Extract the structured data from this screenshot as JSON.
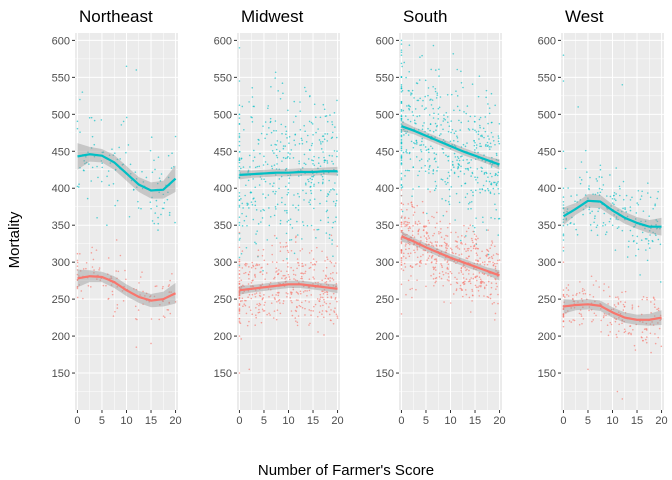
{
  "chart_data": {
    "type": "scatter",
    "xlabel": "Number of Farmer's Score",
    "ylabel": "Mortality",
    "xlim": [
      -0.5,
      20.5
    ],
    "ylim": [
      100,
      610
    ],
    "xticks": [
      0,
      5,
      10,
      15,
      20
    ],
    "yticks": [
      150,
      200,
      250,
      300,
      350,
      400,
      450,
      500,
      550,
      600
    ],
    "grid": true,
    "legend": "none",
    "colors": {
      "series_a": "#00BFC4",
      "series_b": "#F8766D",
      "band": "#999999",
      "panel_bg": "#EBEBEB"
    },
    "panels": [
      {
        "title": "Northeast",
        "series": [
          {
            "color": "#00BFC4",
            "smooth": {
              "x": [
                0,
                2.5,
                5,
                7.5,
                10,
                12.5,
                15,
                17.5,
                20
              ],
              "y": [
                443,
                446,
                444,
                435,
                420,
                405,
                397,
                398,
                413
              ]
            },
            "band_halfwidth": [
              18,
              10,
              9,
              10,
              10,
              10,
              11,
              12,
              18
            ],
            "cloud": {
              "count": 120,
              "spread": 45,
              "points": [
                [
                  1,
                  530
                ],
                [
                  0.5,
                  520
                ],
                [
                  10,
                  565
                ],
                [
                  12,
                  560
                ],
                [
                  20,
                  470
                ],
                [
                  6,
                  350
                ],
                [
                  4,
                  360
                ]
              ]
            }
          },
          {
            "color": "#F8766D",
            "smooth": {
              "x": [
                0,
                2.5,
                5,
                7.5,
                10,
                12.5,
                15,
                17.5,
                20
              ],
              "y": [
                278,
                281,
                280,
                273,
                262,
                253,
                248,
                250,
                258
              ]
            },
            "band_halfwidth": [
              12,
              8,
              7,
              8,
              8,
              8,
              9,
              10,
              14
            ],
            "cloud": {
              "count": 120,
              "spread": 30,
              "points": [
                [
                  3,
                  320
                ],
                [
                  12,
                  185
                ],
                [
                  15,
                  190
                ],
                [
                  8,
                  330
                ]
              ]
            }
          }
        ]
      },
      {
        "title": "Midwest",
        "series": [
          {
            "color": "#00BFC4",
            "smooth": {
              "x": [
                0,
                2.5,
                5,
                7.5,
                10,
                12.5,
                15,
                17.5,
                20
              ],
              "y": [
                418,
                419,
                420,
                421,
                421,
                422,
                422,
                423,
                423
              ]
            },
            "band_halfwidth": [
              6,
              5,
              5,
              5,
              5,
              5,
              5,
              5,
              6
            ],
            "cloud": {
              "count": 420,
              "spread": 90,
              "points": [
                [
                  0,
                  590
                ],
                [
                  0,
                  350
                ],
                [
                  0,
                  500
                ],
                [
                  0,
                  330
                ],
                [
                  0,
                  545
                ]
              ]
            }
          },
          {
            "color": "#F8766D",
            "smooth": {
              "x": [
                0,
                2.5,
                5,
                7.5,
                10,
                12.5,
                15,
                17.5,
                20
              ],
              "y": [
                262,
                264,
                266,
                268,
                270,
                270,
                268,
                266,
                264
              ]
            },
            "band_halfwidth": [
              6,
              5,
              5,
              5,
              5,
              5,
              5,
              5,
              6
            ],
            "cloud": {
              "count": 420,
              "spread": 45,
              "points": [
                [
                  0,
                  150
                ],
                [
                  0,
                  320
                ],
                [
                  0,
                  200
                ],
                [
                  2,
                  155
                ],
                [
                  0,
                  340
                ]
              ]
            }
          }
        ]
      },
      {
        "title": "South",
        "series": [
          {
            "color": "#00BFC4",
            "smooth": {
              "x": [
                0,
                2.5,
                5,
                7.5,
                10,
                12.5,
                15,
                17.5,
                20
              ],
              "y": [
                484,
                478,
                471,
                464,
                457,
                450,
                444,
                438,
                432
              ]
            },
            "band_halfwidth": [
              7,
              5,
              5,
              5,
              5,
              5,
              5,
              5,
              7
            ],
            "cloud": {
              "count": 520,
              "spread": 80,
              "points": [
                [
                  0,
                  600
                ],
                [
                  0,
                  595
                ],
                [
                  0,
                  360
                ],
                [
                  0,
                  390
                ],
                [
                  0,
                  420
                ],
                [
                  0,
                  580
                ],
                [
                  0,
                  540
                ]
              ]
            }
          },
          {
            "color": "#F8766D",
            "smooth": {
              "x": [
                0,
                2.5,
                5,
                7.5,
                10,
                12.5,
                15,
                17.5,
                20
              ],
              "y": [
                335,
                328,
                320,
                313,
                306,
                300,
                294,
                288,
                282
              ]
            },
            "band_halfwidth": [
              7,
              5,
              5,
              5,
              5,
              5,
              5,
              5,
              7
            ],
            "cloud": {
              "count": 520,
              "spread": 45,
              "points": [
                [
                  0,
                  380
                ],
                [
                  0,
                  270
                ],
                [
                  0,
                  360
                ],
                [
                  0,
                  230
                ],
                [
                  0,
                  300
                ]
              ]
            }
          }
        ]
      },
      {
        "title": "West",
        "series": [
          {
            "color": "#00BFC4",
            "smooth": {
              "x": [
                0,
                2.5,
                5,
                7.5,
                10,
                12.5,
                15,
                17.5,
                20
              ],
              "y": [
                362,
                372,
                383,
                382,
                370,
                360,
                353,
                348,
                348
              ]
            },
            "band_halfwidth": [
              12,
              8,
              9,
              9,
              8,
              8,
              8,
              9,
              12
            ],
            "cloud": {
              "count": 200,
              "spread": 45,
              "points": [
                [
                  0,
                  580
                ],
                [
                  0,
                  545
                ],
                [
                  3,
                  510
                ],
                [
                  12,
                  540
                ],
                [
                  0,
                  400
                ],
                [
                  0,
                  450
                ]
              ]
            }
          },
          {
            "color": "#F8766D",
            "smooth": {
              "x": [
                0,
                2.5,
                5,
                7.5,
                10,
                12.5,
                15,
                17.5,
                20
              ],
              "y": [
                240,
                242,
                243,
                241,
                232,
                225,
                222,
                222,
                225
              ]
            },
            "band_halfwidth": [
              10,
              7,
              7,
              7,
              7,
              7,
              7,
              8,
              10
            ],
            "cloud": {
              "count": 200,
              "spread": 30,
              "points": [
                [
                  0,
                  320
                ],
                [
                  0,
                  300
                ],
                [
                  12,
                  115
                ],
                [
                  11,
                  125
                ],
                [
                  5,
                  155
                ]
              ]
            }
          }
        ]
      }
    ]
  }
}
